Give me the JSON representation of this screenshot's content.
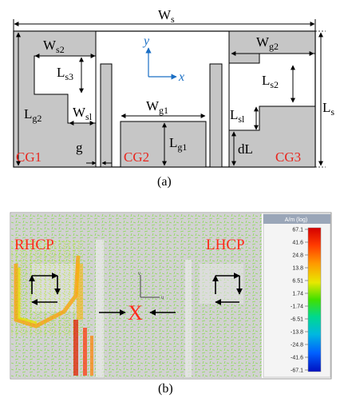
{
  "diagram_a": {
    "caption": "(a)",
    "dimensions": {
      "ws": {
        "main": "W",
        "sub": "s"
      },
      "ws2": {
        "main": "W",
        "sub": "s2"
      },
      "wg2": {
        "main": "W",
        "sub": "g2"
      },
      "ls3": {
        "main": "L",
        "sub": "s3"
      },
      "lg2": {
        "main": "L",
        "sub": "g2"
      },
      "wsl": {
        "main": "W",
        "sub": "sl"
      },
      "wg1": {
        "main": "W",
        "sub": "g1"
      },
      "lg1": {
        "main": "L",
        "sub": "g1"
      },
      "ls2": {
        "main": "L",
        "sub": "s2"
      },
      "lsl": {
        "main": "L",
        "sub": "sl"
      },
      "dl": "dL",
      "ls": {
        "main": "L",
        "sub": "s"
      },
      "g": "g"
    },
    "axes": {
      "y": "y",
      "x": "x"
    },
    "regions": {
      "cg1": "CG1",
      "cg2": "CG2",
      "cg3": "CG3"
    },
    "colors": {
      "ground": "#c6c6c6",
      "outline": "#000000",
      "region_label": "#e8261e",
      "axis": "#1b6fc4"
    }
  },
  "diagram_b": {
    "caption": "(b)",
    "labels": {
      "rhcp": "RHCP",
      "lhcp": "LHCP",
      "center": "X"
    },
    "colorbar": {
      "title": "A/m (log)",
      "ticks": [
        "67.1",
        "41.6",
        "24.8",
        "13.8",
        "6.51",
        "1.74",
        "-1.74",
        "-6.51",
        "-13.8",
        "-24.8",
        "-41.6",
        "-67.1"
      ]
    },
    "colors": {
      "label": "#ff2a1a",
      "field_bg": "#d2d2d2"
    }
  }
}
